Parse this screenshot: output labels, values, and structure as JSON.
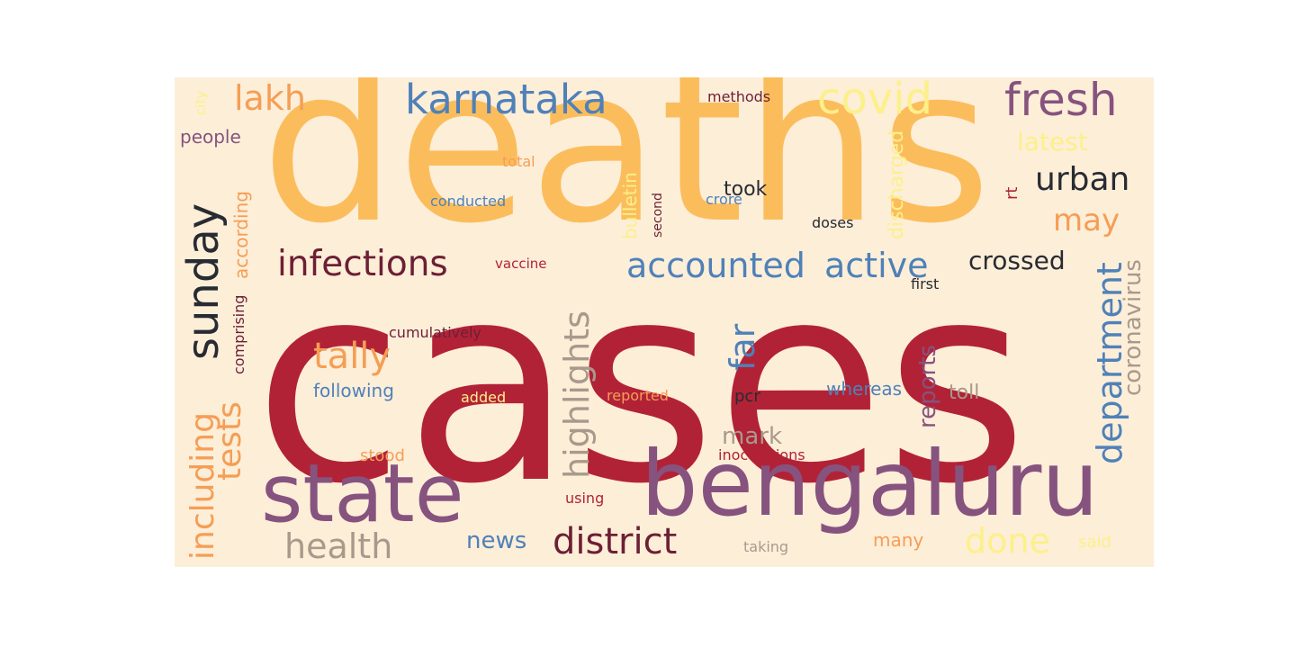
{
  "colors": {
    "background": "#fdeed8",
    "crimson": "#b22237",
    "amber": "#fbbd5c",
    "plum": "#86537f",
    "steel_blue": "#4f81b8",
    "charcoal": "#282b32",
    "maroon": "#6c1f35",
    "orange": "#f59e55",
    "yellow": "#fcf08a",
    "taupe": "#a9998c",
    "rose": "#d8677e"
  },
  "words": [
    {
      "text": "cases",
      "color": "crimson"
    },
    {
      "text": "deaths",
      "color": "amber"
    },
    {
      "text": "bengaluru",
      "color": "plum"
    },
    {
      "text": "state",
      "color": "plum"
    },
    {
      "text": "karnataka",
      "color": "steel_blue"
    },
    {
      "text": "fresh",
      "color": "plum"
    },
    {
      "text": "covid",
      "color": "yellow"
    },
    {
      "text": "lakh",
      "color": "orange"
    },
    {
      "text": "urban",
      "color": "charcoal"
    },
    {
      "text": "sunday",
      "color": "charcoal"
    },
    {
      "text": "infections",
      "color": "maroon"
    },
    {
      "text": "accounted",
      "color": "steel_blue"
    },
    {
      "text": "active",
      "color": "steel_blue"
    },
    {
      "text": "crossed",
      "color": "charcoal"
    },
    {
      "text": "may",
      "color": "orange"
    },
    {
      "text": "latest",
      "color": "yellow"
    },
    {
      "text": "tally",
      "color": "orange"
    },
    {
      "text": "district",
      "color": "maroon"
    },
    {
      "text": "health",
      "color": "taupe"
    },
    {
      "text": "done",
      "color": "yellow"
    },
    {
      "text": "news",
      "color": "steel_blue"
    },
    {
      "text": "highlights",
      "color": "taupe"
    },
    {
      "text": "including",
      "color": "orange"
    },
    {
      "text": "tests",
      "color": "orange"
    },
    {
      "text": "department",
      "color": "steel_blue"
    },
    {
      "text": "coronavirus",
      "color": "taupe"
    },
    {
      "text": "reports",
      "color": "plum"
    },
    {
      "text": "far",
      "color": "steel_blue"
    },
    {
      "text": "mark",
      "color": "taupe"
    },
    {
      "text": "following",
      "color": "steel_blue"
    },
    {
      "text": "whereas",
      "color": "steel_blue"
    },
    {
      "text": "toll",
      "color": "taupe"
    },
    {
      "text": "took",
      "color": "charcoal"
    },
    {
      "text": "people",
      "color": "plum"
    },
    {
      "text": "methods",
      "color": "maroon"
    },
    {
      "text": "conducted",
      "color": "steel_blue"
    },
    {
      "text": "total",
      "color": "orange"
    },
    {
      "text": "bulletin",
      "color": "yellow"
    },
    {
      "text": "second",
      "color": "maroon"
    },
    {
      "text": "crore",
      "color": "steel_blue"
    },
    {
      "text": "doses",
      "color": "charcoal"
    },
    {
      "text": "discharged",
      "color": "yellow"
    },
    {
      "text": "rt",
      "color": "crimson"
    },
    {
      "text": "vaccine",
      "color": "crimson"
    },
    {
      "text": "first",
      "color": "charcoal"
    },
    {
      "text": "cumulatively",
      "color": "maroon"
    },
    {
      "text": "added",
      "color": "yellow"
    },
    {
      "text": "reported",
      "color": "orange"
    },
    {
      "text": "pcr",
      "color": "charcoal"
    },
    {
      "text": "stood",
      "color": "orange"
    },
    {
      "text": "inoculations",
      "color": "crimson"
    },
    {
      "text": "using",
      "color": "crimson"
    },
    {
      "text": "taking",
      "color": "taupe"
    },
    {
      "text": "many",
      "color": "orange"
    },
    {
      "text": "said",
      "color": "yellow"
    },
    {
      "text": "comprising",
      "color": "maroon"
    },
    {
      "text": "according",
      "color": "orange"
    },
    {
      "text": "city",
      "color": "yellow"
    }
  ]
}
